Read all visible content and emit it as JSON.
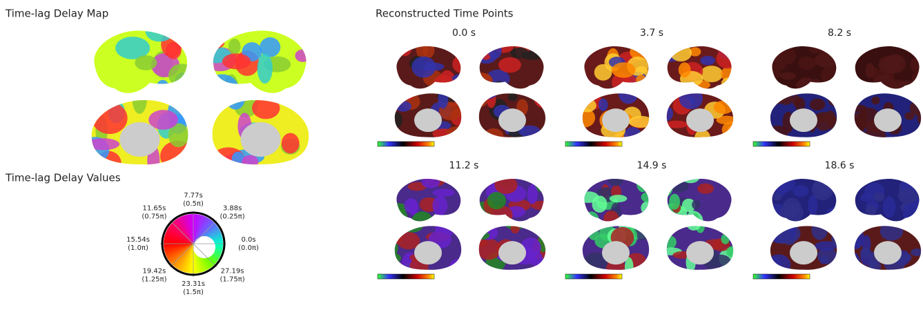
{
  "left_panel": {
    "title": "Time-lag Delay Map"
  },
  "polar_legend": {
    "title": "Time-lag Delay Values",
    "labels": [
      {
        "time": "0.0s",
        "phase": "(0.0π)"
      },
      {
        "time": "3.88s",
        "phase": "(0.25π)"
      },
      {
        "time": "7.77s",
        "phase": "(0.5π)"
      },
      {
        "time": "11.65s",
        "phase": "(0.75π)"
      },
      {
        "time": "15.54s",
        "phase": "(1.0π)"
      },
      {
        "time": "19.42s",
        "phase": "(1.25π)"
      },
      {
        "time": "23.31s",
        "phase": "(1.5π)"
      },
      {
        "time": "27.19s",
        "phase": "(1.75π)"
      }
    ]
  },
  "right_panel": {
    "title": "Reconstructed Time Points",
    "panels": [
      {
        "label": "0.0 s"
      },
      {
        "label": "3.7 s"
      },
      {
        "label": "8.2 s"
      },
      {
        "label": "11.2 s"
      },
      {
        "label": "14.9 s"
      },
      {
        "label": "18.6 s"
      }
    ]
  }
}
